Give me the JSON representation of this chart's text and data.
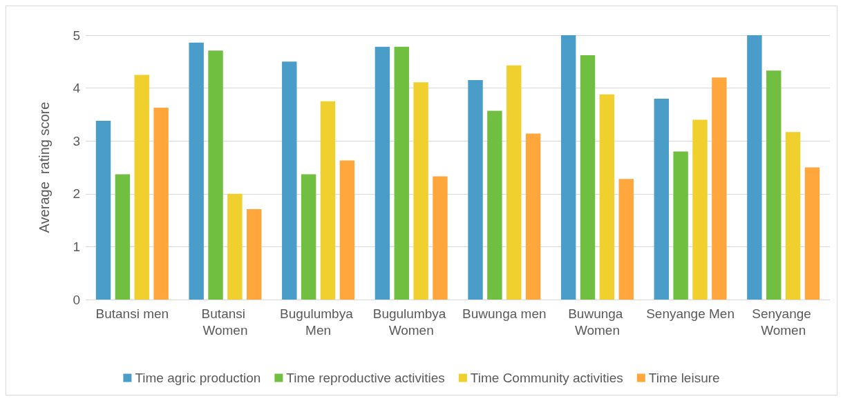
{
  "chart_data": {
    "type": "bar",
    "ylabel": "Average  rating score",
    "categories": [
      "Butansi men",
      "Butansi Women",
      "Bugulumbya Men",
      "Bugulumbya Women",
      "Buwunga men",
      "Buwunga Women",
      "Senyange Men",
      "Senyange Women"
    ],
    "series": [
      {
        "name": "Time agric production",
        "color": "#4a9cc9",
        "values": [
          3.38,
          4.86,
          4.5,
          4.78,
          4.15,
          5,
          3.8,
          5
        ]
      },
      {
        "name": "Time reproductive activities",
        "color": "#70bf41",
        "values": [
          2.37,
          4.71,
          2.37,
          4.78,
          3.57,
          4.62,
          2.8,
          4.33
        ]
      },
      {
        "name": "Time Community activities",
        "color": "#f0d02e",
        "values": [
          4.25,
          2.0,
          3.75,
          4.11,
          4.43,
          3.88,
          3.4,
          3.17
        ]
      },
      {
        "name": "Time leisure",
        "color": "#ffa73c",
        "values": [
          3.63,
          1.71,
          2.63,
          2.33,
          3.14,
          2.28,
          4.2,
          2.5
        ]
      }
    ],
    "ylim": [
      0,
      5
    ],
    "yticks": [
      0,
      1,
      2,
      3,
      4,
      5
    ],
    "grid": "y",
    "legend": "bottom"
  }
}
